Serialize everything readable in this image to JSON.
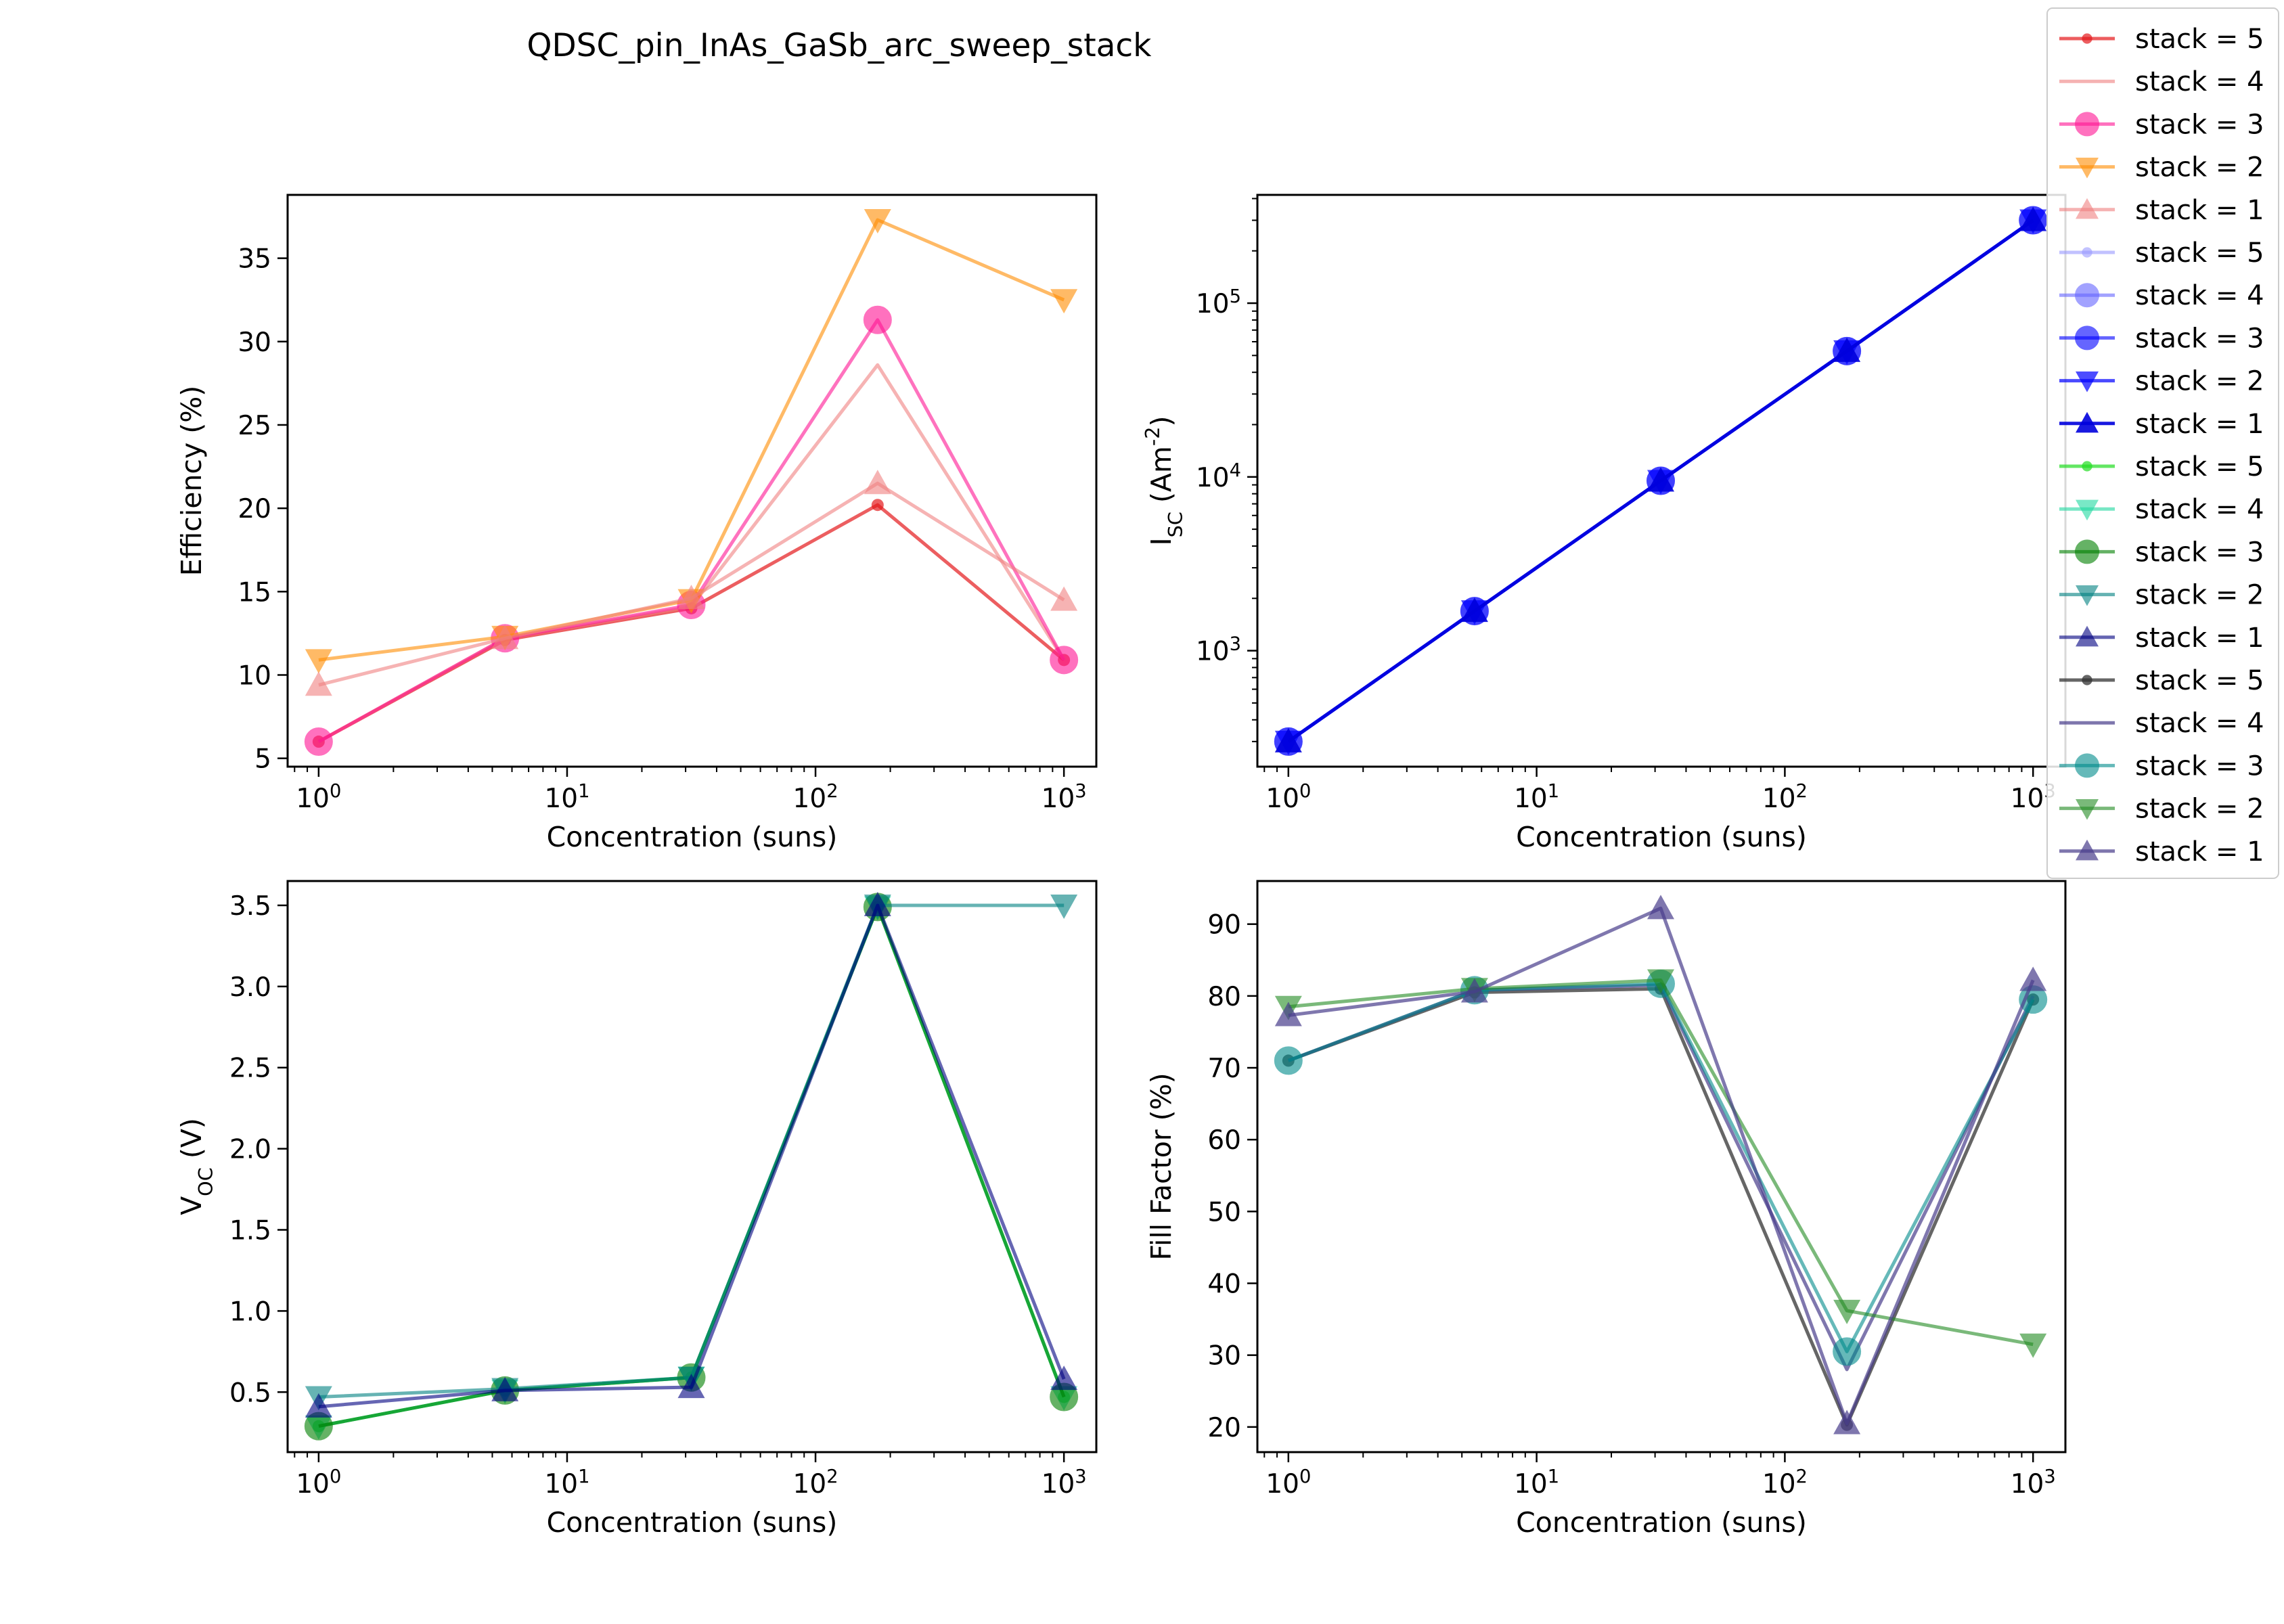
{
  "title": "QDSC_pin_InAs_GaSb_arc_sweep_stack",
  "x_values": [
    1,
    5.6234,
    31.6228,
    177.8279,
    1000
  ],
  "x_tick_labels": [
    "10^0",
    "10^1",
    "10^2",
    "10^3"
  ],
  "legend": {
    "placement": "upper-right",
    "entries": [
      {
        "label": "stack = 5",
        "color": "#e41a1c",
        "marker": "dot",
        "alpha": 0.7
      },
      {
        "label": "stack = 4",
        "color": "#f08080",
        "marker": "none",
        "alpha": 0.6
      },
      {
        "label": "stack = 3",
        "color": "#ff1493",
        "marker": "circle",
        "alpha": 0.6
      },
      {
        "label": "stack = 2",
        "color": "#ff8c00",
        "marker": "tri-down",
        "alpha": 0.6
      },
      {
        "label": "stack = 1",
        "color": "#f08080",
        "marker": "tri-up",
        "alpha": 0.6
      },
      {
        "label": "stack = 5",
        "color": "#9999ff",
        "marker": "dot",
        "alpha": 0.6
      },
      {
        "label": "stack = 4",
        "color": "#6666ff",
        "marker": "circle",
        "alpha": 0.6
      },
      {
        "label": "stack = 3",
        "color": "#0000ff",
        "marker": "circle",
        "alpha": 0.6
      },
      {
        "label": "stack = 2",
        "color": "#0000ff",
        "marker": "tri-down",
        "alpha": 0.7
      },
      {
        "label": "stack = 1",
        "color": "#0000dd",
        "marker": "tri-up",
        "alpha": 0.9
      },
      {
        "label": "stack = 5",
        "color": "#22dd22",
        "marker": "dot",
        "alpha": 0.7
      },
      {
        "label": "stack = 4",
        "color": "#20d8a0",
        "marker": "tri-down",
        "alpha": 0.6
      },
      {
        "label": "stack = 3",
        "color": "#008000",
        "marker": "circle",
        "alpha": 0.6
      },
      {
        "label": "stack = 2",
        "color": "#008080",
        "marker": "tri-down",
        "alpha": 0.6
      },
      {
        "label": "stack = 1",
        "color": "#000080",
        "marker": "tri-up",
        "alpha": 0.6
      },
      {
        "label": "stack = 5",
        "color": "#333333",
        "marker": "dot",
        "alpha": 0.75
      },
      {
        "label": "stack = 4",
        "color": "#483d8b",
        "marker": "none",
        "alpha": 0.7
      },
      {
        "label": "stack = 3",
        "color": "#008b8b",
        "marker": "circle",
        "alpha": 0.6
      },
      {
        "label": "stack = 2",
        "color": "#228b22",
        "marker": "tri-down",
        "alpha": 0.6
      },
      {
        "label": "stack = 1",
        "color": "#483d8b",
        "marker": "tri-up",
        "alpha": 0.7
      }
    ]
  },
  "chart_data": [
    {
      "type": "line",
      "xlabel": "Concentration (suns)",
      "ylabel": "Efficiency (%)",
      "xscale": "log",
      "yscale": "linear",
      "xlim": [
        0.75,
        1350
      ],
      "ylim": [
        4.5,
        38.8
      ],
      "y_ticks": [
        5,
        10,
        15,
        20,
        25,
        30,
        35
      ],
      "y_tick_labels": [
        "5",
        "10",
        "15",
        "20",
        "25",
        "30",
        "35"
      ],
      "series": [
        {
          "legend": 0,
          "values": [
            6.0,
            12.1,
            14.0,
            20.2,
            10.9
          ]
        },
        {
          "legend": 1,
          "values": [
            6.0,
            12.2,
            14.1,
            28.6,
            10.9
          ]
        },
        {
          "legend": 2,
          "values": [
            6.0,
            12.2,
            14.2,
            31.3,
            10.9
          ]
        },
        {
          "legend": 3,
          "values": [
            10.9,
            12.3,
            14.5,
            37.3,
            32.5
          ]
        },
        {
          "legend": 4,
          "values": [
            9.4,
            12.2,
            14.6,
            21.5,
            14.5
          ]
        }
      ]
    },
    {
      "type": "line",
      "xlabel": "Concentration (suns)",
      "ylabel": "I_SC (Am^-2)",
      "xscale": "log",
      "yscale": "log",
      "xlim": [
        0.75,
        1350
      ],
      "ylim": [
        215,
        420000
      ],
      "y_ticks": [
        1000,
        10000,
        100000
      ],
      "y_tick_labels": [
        "10^3",
        "10^4",
        "10^5"
      ],
      "series": [
        {
          "legend": 5,
          "values": [
            300,
            1690,
            9500,
            53000,
            300000
          ]
        },
        {
          "legend": 6,
          "values": [
            300,
            1690,
            9500,
            53000,
            300000
          ]
        },
        {
          "legend": 7,
          "values": [
            300,
            1690,
            9500,
            53000,
            300000
          ]
        },
        {
          "legend": 8,
          "values": [
            300,
            1690,
            9500,
            53000,
            300000
          ]
        },
        {
          "legend": 9,
          "values": [
            300,
            1690,
            9500,
            53000,
            300000
          ]
        }
      ]
    },
    {
      "type": "line",
      "xlabel": "Concentration (suns)",
      "ylabel": "V_OC (V)",
      "xscale": "log",
      "yscale": "linear",
      "xlim": [
        0.75,
        1350
      ],
      "ylim": [
        0.13,
        3.65
      ],
      "y_ticks": [
        0.5,
        1.0,
        1.5,
        2.0,
        2.5,
        3.0,
        3.5
      ],
      "y_tick_labels": [
        "0.5",
        "1.0",
        "1.5",
        "2.0",
        "2.5",
        "3.0",
        "3.5"
      ],
      "series": [
        {
          "legend": 10,
          "values": [
            0.29,
            0.51,
            0.59,
            3.49,
            0.47
          ]
        },
        {
          "legend": 11,
          "values": [
            0.29,
            0.51,
            0.59,
            3.49,
            0.47
          ]
        },
        {
          "legend": 12,
          "values": [
            0.29,
            0.51,
            0.59,
            3.49,
            0.47
          ]
        },
        {
          "legend": 13,
          "values": [
            0.47,
            0.52,
            0.59,
            3.5,
            3.5
          ]
        },
        {
          "legend": 14,
          "values": [
            0.41,
            0.51,
            0.53,
            3.5,
            0.58
          ]
        }
      ]
    },
    {
      "type": "line",
      "xlabel": "Concentration (suns)",
      "ylabel": "Fill Factor (%)",
      "xscale": "log",
      "yscale": "linear",
      "xlim": [
        0.75,
        1350
      ],
      "ylim": [
        16.5,
        96.0
      ],
      "y_ticks": [
        20,
        30,
        40,
        50,
        60,
        70,
        80,
        90
      ],
      "y_tick_labels": [
        "20",
        "30",
        "40",
        "50",
        "60",
        "70",
        "80",
        "90"
      ],
      "series": [
        {
          "legend": 15,
          "values": [
            71.0,
            80.5,
            81.0,
            20.3,
            79.5
          ]
        },
        {
          "legend": 16,
          "values": [
            71.0,
            80.8,
            81.5,
            28.0,
            80.0
          ]
        },
        {
          "legend": 17,
          "values": [
            71.0,
            80.8,
            81.7,
            30.5,
            79.5
          ]
        },
        {
          "legend": 18,
          "values": [
            78.5,
            81.0,
            82.2,
            36.2,
            31.5
          ]
        },
        {
          "legend": 19,
          "values": [
            77.3,
            80.6,
            92.2,
            20.5,
            82.2
          ]
        }
      ]
    }
  ]
}
